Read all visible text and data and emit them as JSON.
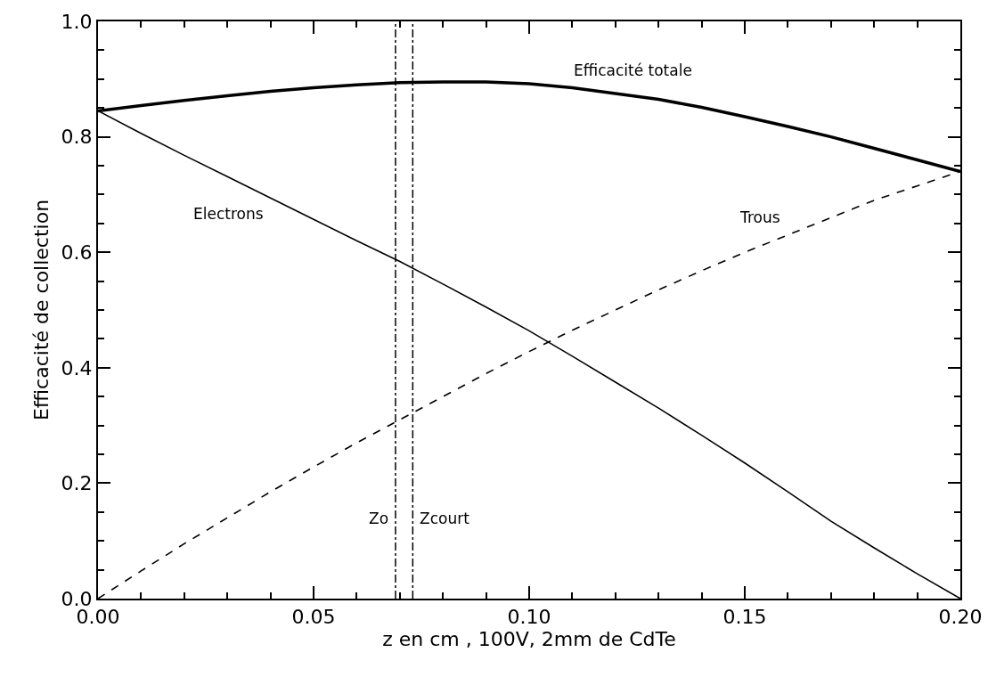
{
  "chart_data": {
    "type": "line",
    "xlabel": "z en cm , 100V, 2mm de CdTe",
    "ylabel": "Efficacité de collection",
    "x": [
      0,
      0.01,
      0.02,
      0.03,
      0.04,
      0.05,
      0.06,
      0.07,
      0.08,
      0.09,
      0.1,
      0.11,
      0.12,
      0.13,
      0.14,
      0.15,
      0.16,
      0.17,
      0.18,
      0.19,
      0.2
    ],
    "series": [
      {
        "name": "Efficacité totale",
        "color": "#000000",
        "line_style": "solid",
        "values": [
          0.845,
          0.854,
          0.863,
          0.871,
          0.879,
          0.885,
          0.89,
          0.894,
          0.895,
          0.895,
          0.892,
          0.885,
          0.875,
          0.865,
          0.851,
          0.835,
          0.818,
          0.8,
          0.78,
          0.76,
          0.74
        ]
      },
      {
        "name": "Electrons",
        "color": "#000000",
        "line_style": "solid",
        "values": [
          0.845,
          0.806,
          0.768,
          0.731,
          0.694,
          0.657,
          0.62,
          0.584,
          0.545,
          0.505,
          0.464,
          0.42,
          0.375,
          0.33,
          0.283,
          0.235,
          0.185,
          0.134,
          0.088,
          0.043,
          0
        ]
      },
      {
        "name": "Trous",
        "color": "#000000",
        "line_style": "dashed",
        "values": [
          0,
          0.048,
          0.095,
          0.14,
          0.185,
          0.228,
          0.27,
          0.31,
          0.35,
          0.39,
          0.428,
          0.465,
          0.5,
          0.535,
          0.568,
          0.6,
          0.63,
          0.66,
          0.69,
          0.715,
          0.74
        ]
      }
    ],
    "ref_lines": [
      {
        "axis": "x",
        "value": 0.069,
        "label": "Zo",
        "line_style": "dashdot",
        "color": "#000000"
      },
      {
        "axis": "x",
        "value": 0.073,
        "label": "Zcourt",
        "line_style": "dashdot",
        "color": "#000000"
      }
    ],
    "xlim": [
      0,
      0.2
    ],
    "xticks": [
      {
        "value": 0,
        "label": "0.00"
      },
      0.05,
      {
        "value": 0.1,
        "label": "0.10"
      },
      0.15,
      {
        "value": 0.2,
        "label": "0.20"
      }
    ],
    "ylim": [
      0,
      1
    ],
    "yticks": [
      {
        "value": 0,
        "label": "0.0"
      },
      0.2,
      0.4,
      0.6,
      0.8,
      {
        "value": 1,
        "label": "1.0"
      }
    ],
    "legend": false,
    "marker": "none"
  }
}
